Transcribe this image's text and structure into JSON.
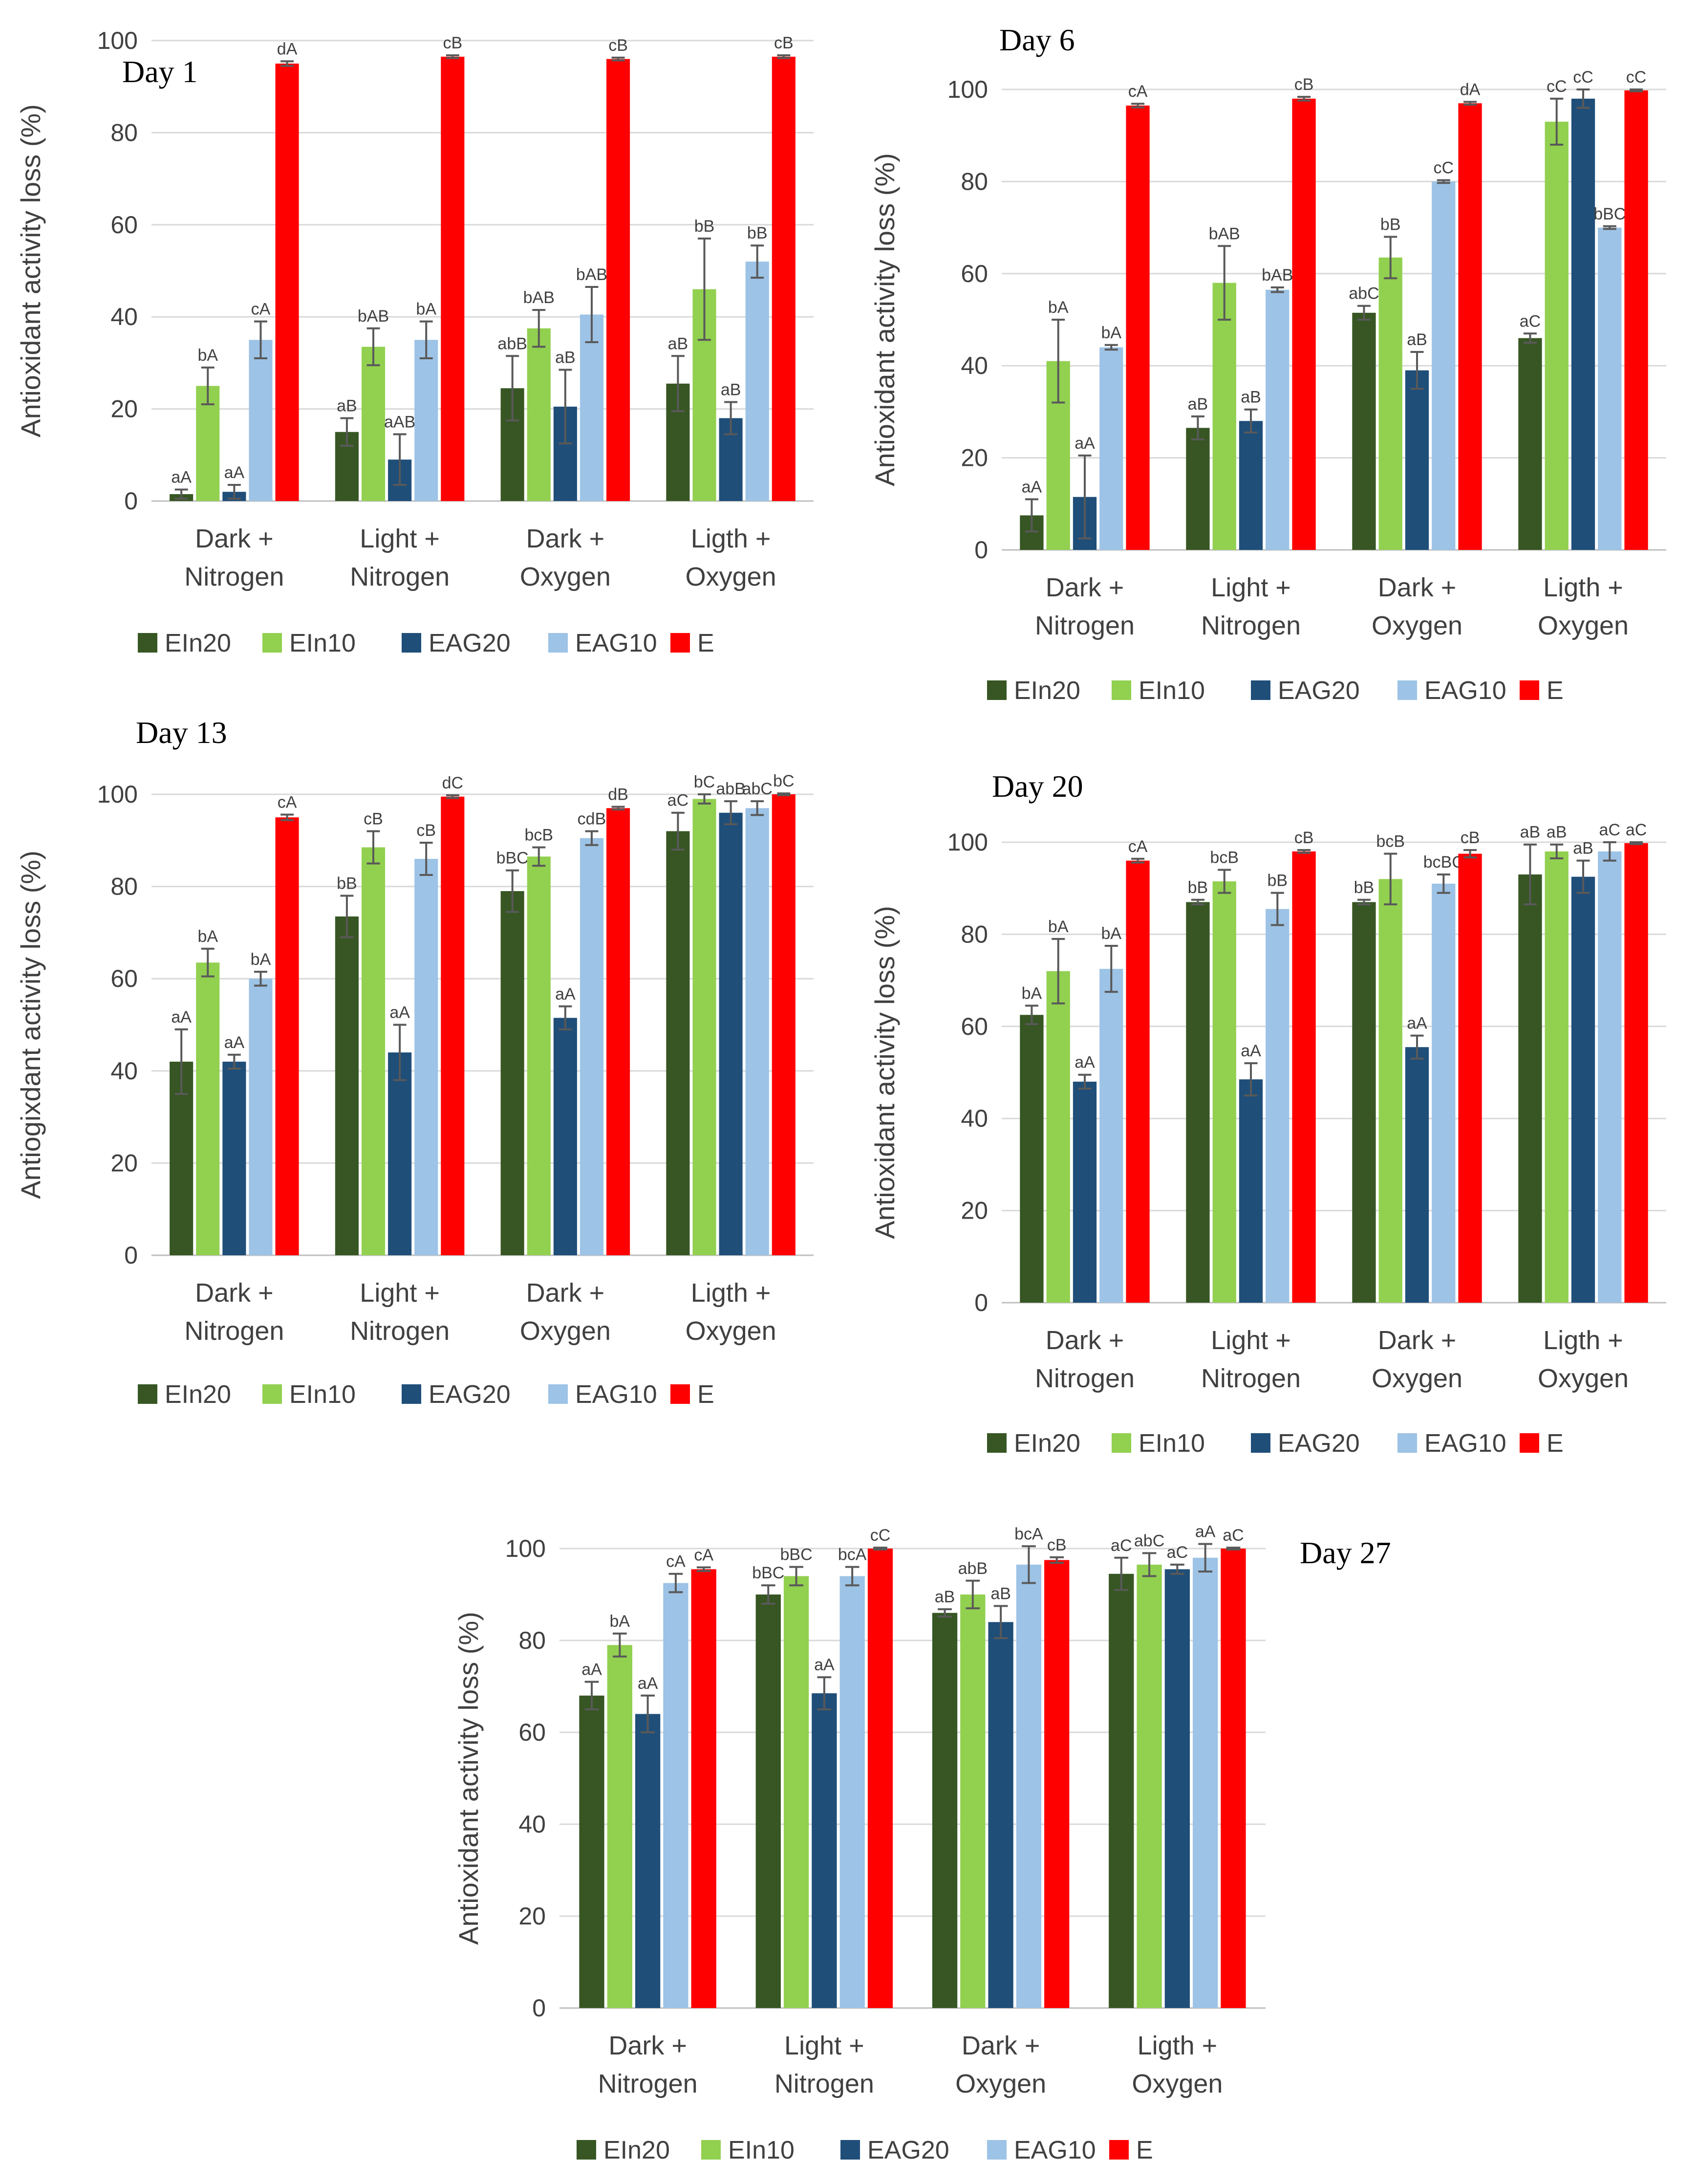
{
  "chart_data": [
    {
      "type": "bar",
      "title": "Day 1",
      "ylabel": "Antioxidant activity loss (%)",
      "ylim": [
        0,
        100
      ],
      "yticks": [
        0,
        20,
        40,
        60,
        80,
        100
      ],
      "categories": [
        "Dark +\nNitrogen",
        "Light +\nNitrogen",
        "Dark +\nOxygen",
        "Ligth +\nOxygen"
      ],
      "series": [
        {
          "name": "EIn20",
          "color": "#375623",
          "values": [
            1.5,
            15,
            24.5,
            25.5
          ],
          "errors": [
            1,
            3,
            7,
            6
          ],
          "letters": [
            "aA",
            "aB",
            "abB",
            "aB"
          ]
        },
        {
          "name": "EIn10",
          "color": "#92D050",
          "values": [
            25,
            33.5,
            37.5,
            46
          ],
          "errors": [
            4,
            4,
            4,
            11
          ],
          "letters": [
            "bA",
            "bAB",
            "bAB",
            "bB"
          ]
        },
        {
          "name": "EAG20",
          "color": "#1F4E79",
          "values": [
            2,
            9,
            20.5,
            18
          ],
          "errors": [
            1.5,
            5.5,
            8,
            3.5
          ],
          "letters": [
            "aA",
            "aAB",
            "aB",
            "aB"
          ]
        },
        {
          "name": "EAG10",
          "color": "#9DC3E6",
          "values": [
            35,
            35,
            40.5,
            52
          ],
          "errors": [
            4,
            4,
            6,
            3.5
          ],
          "letters": [
            "cA",
            "bA",
            "bAB",
            "bB"
          ]
        },
        {
          "name": "E",
          "color": "#FF0000",
          "values": [
            95,
            96.5,
            96,
            96.5
          ],
          "errors": [
            0.5,
            0.3,
            0.3,
            0.3
          ],
          "letters": [
            "dA",
            "cB",
            "cB",
            "cB"
          ]
        }
      ]
    },
    {
      "type": "bar",
      "title": "Day 6",
      "ylabel": "Antioxidant activity loss (%)",
      "ylim": [
        0,
        100
      ],
      "yticks": [
        0,
        20,
        40,
        60,
        80,
        100
      ],
      "categories": [
        "Dark +\nNitrogen",
        "Light +\nNitrogen",
        "Dark +\nOxygen",
        "Ligth +\nOxygen"
      ],
      "series": [
        {
          "name": "EIn20",
          "color": "#375623",
          "values": [
            7.5,
            26.5,
            51.5,
            46
          ],
          "errors": [
            3.5,
            2.5,
            1.5,
            1
          ],
          "letters": [
            "aA",
            "aB",
            "abC",
            "aC"
          ]
        },
        {
          "name": "EIn10",
          "color": "#92D050",
          "values": [
            41,
            58,
            63.5,
            93
          ],
          "errors": [
            9,
            8,
            4.5,
            5
          ],
          "letters": [
            "bA",
            "bAB",
            "bB",
            "cC"
          ]
        },
        {
          "name": "EAG20",
          "color": "#1F4E79",
          "values": [
            11.5,
            28,
            39,
            98
          ],
          "errors": [
            9,
            2.5,
            4,
            2
          ],
          "letters": [
            "aA",
            "aB",
            "aB",
            "cC"
          ]
        },
        {
          "name": "EAG10",
          "color": "#9DC3E6",
          "values": [
            44,
            56.5,
            80,
            70
          ],
          "errors": [
            0.5,
            0.5,
            0.3,
            0.3
          ],
          "letters": [
            "bA",
            "bAB",
            "cC",
            "bBC"
          ]
        },
        {
          "name": "E",
          "color": "#FF0000",
          "values": [
            96.5,
            98,
            97,
            99.8
          ],
          "errors": [
            0.4,
            0.4,
            0.3,
            0.2
          ],
          "letters": [
            "cA",
            "cB",
            "dA",
            "cC"
          ]
        }
      ]
    },
    {
      "type": "bar",
      "title": "Day 13",
      "ylabel": "Antiogixdant activity loss (%)",
      "ylim": [
        0,
        100
      ],
      "yticks": [
        0,
        20,
        40,
        60,
        80,
        100
      ],
      "categories": [
        "Dark +\nNitrogen",
        "Light +\nNitrogen",
        "Dark +\nOxygen",
        "Ligth +\nOxygen"
      ],
      "series": [
        {
          "name": "EIn20",
          "color": "#375623",
          "values": [
            42,
            73.5,
            79,
            92
          ],
          "errors": [
            7,
            4.5,
            4.5,
            4
          ],
          "letters": [
            "aA",
            "bB",
            "bBC",
            "aC"
          ]
        },
        {
          "name": "EIn10",
          "color": "#92D050",
          "values": [
            63.5,
            88.5,
            86.5,
            99
          ],
          "errors": [
            3,
            3.5,
            2,
            1
          ],
          "letters": [
            "bA",
            "cB",
            "bcB",
            "bC"
          ]
        },
        {
          "name": "EAG20",
          "color": "#1F4E79",
          "values": [
            42,
            44,
            51.5,
            96
          ],
          "errors": [
            1.5,
            6,
            2.5,
            2.5
          ],
          "letters": [
            "aA",
            "aA",
            "aA",
            "abB"
          ]
        },
        {
          "name": "EAG10",
          "color": "#9DC3E6",
          "values": [
            60,
            86,
            90.5,
            97
          ],
          "errors": [
            1.5,
            3.5,
            1.5,
            1.5
          ],
          "letters": [
            "bA",
            "cB",
            "cdB",
            "abC"
          ]
        },
        {
          "name": "E",
          "color": "#FF0000",
          "values": [
            95,
            99.5,
            97,
            100
          ],
          "errors": [
            0.6,
            0.3,
            0.3,
            0.2
          ],
          "letters": [
            "cA",
            "dC",
            "dB",
            "bC"
          ]
        }
      ]
    },
    {
      "type": "bar",
      "title": "Day 20",
      "ylabel": "Antioxidant activity loss (%)",
      "ylim": [
        0,
        100
      ],
      "yticks": [
        0,
        20,
        40,
        60,
        80,
        100
      ],
      "categories": [
        "Dark +\nNitrogen",
        "Light +\nNitrogen",
        "Dark +\nOxygen",
        "Ligth +\nOxygen"
      ],
      "series": [
        {
          "name": "EIn20",
          "color": "#375623",
          "values": [
            62.5,
            87,
            87,
            93
          ],
          "errors": [
            2,
            0.5,
            0.5,
            6.5
          ],
          "letters": [
            "bA",
            "bB",
            "bB",
            "aB"
          ]
        },
        {
          "name": "EIn10",
          "color": "#92D050",
          "values": [
            72,
            91.5,
            92,
            98
          ],
          "errors": [
            7,
            2.5,
            5.5,
            1.5
          ],
          "letters": [
            "bA",
            "bcB",
            "bcB",
            "aB"
          ]
        },
        {
          "name": "EAG20",
          "color": "#1F4E79",
          "values": [
            48,
            48.5,
            55.5,
            92.5
          ],
          "errors": [
            1.5,
            3.5,
            2.5,
            3.5
          ],
          "letters": [
            "aA",
            "aA",
            "aA",
            "aB"
          ]
        },
        {
          "name": "EAG10",
          "color": "#9DC3E6",
          "values": [
            72.5,
            85.5,
            91,
            98
          ],
          "errors": [
            5,
            3.5,
            2,
            2
          ],
          "letters": [
            "bA",
            "bB",
            "bcBC",
            "aC"
          ]
        },
        {
          "name": "E",
          "color": "#FF0000",
          "values": [
            96,
            98,
            97.5,
            99.8
          ],
          "errors": [
            0.4,
            0.3,
            0.8,
            0.2
          ],
          "letters": [
            "cA",
            "cB",
            "cB",
            "aC"
          ]
        }
      ]
    },
    {
      "type": "bar",
      "title": "Day 27",
      "ylabel": "Antioxidant activity loss (%)",
      "ylim": [
        0,
        100
      ],
      "yticks": [
        0,
        20,
        40,
        60,
        80,
        100
      ],
      "categories": [
        "Dark +\nNitrogen",
        "Light +\nNitrogen",
        "Dark +\nOxygen",
        "Ligth +\nOxygen"
      ],
      "series": [
        {
          "name": "EIn20",
          "color": "#375623",
          "values": [
            68,
            90,
            86,
            94.5
          ],
          "errors": [
            3,
            2,
            0.8,
            3.5
          ],
          "letters": [
            "aA",
            "bBC",
            "aB",
            "aC"
          ]
        },
        {
          "name": "EIn10",
          "color": "#92D050",
          "values": [
            79,
            94,
            90,
            96.5
          ],
          "errors": [
            2.5,
            2,
            3,
            2.5
          ],
          "letters": [
            "bA",
            "bBC",
            "abB",
            "abC"
          ]
        },
        {
          "name": "EAG20",
          "color": "#1F4E79",
          "values": [
            64,
            68.5,
            84,
            95.5
          ],
          "errors": [
            4,
            3.5,
            3.5,
            1
          ],
          "letters": [
            "aA",
            "aA",
            "aB",
            "aC"
          ]
        },
        {
          "name": "EAG10",
          "color": "#9DC3E6",
          "values": [
            92.5,
            94,
            96.5,
            98
          ],
          "errors": [
            2,
            2,
            4,
            3
          ],
          "letters": [
            "cA",
            "bcA",
            "bcA",
            "aA"
          ]
        },
        {
          "name": "E",
          "color": "#FF0000",
          "values": [
            95.5,
            100,
            97.5,
            100
          ],
          "errors": [
            0.4,
            0.2,
            0.6,
            0.2
          ],
          "letters": [
            "cA",
            "cC",
            "cB",
            "aC"
          ]
        }
      ]
    }
  ]
}
